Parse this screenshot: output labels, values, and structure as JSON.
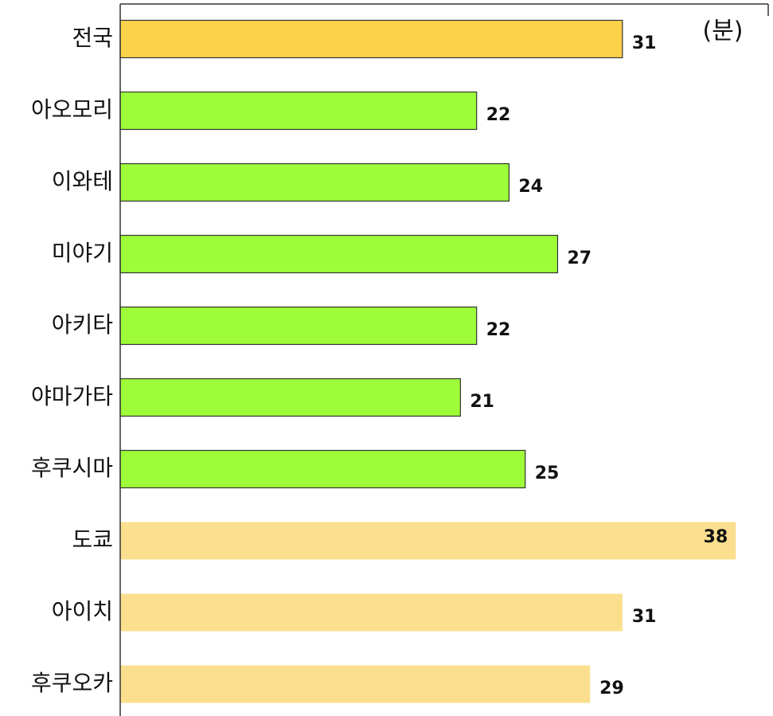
{
  "chart_data": {
    "type": "barh",
    "unit_label": "(분)",
    "categories": [
      "전국",
      "아오모리",
      "이와테",
      "미야기",
      "아키타",
      "야마가타",
      "후쿠시마",
      "도쿄",
      "아이치",
      "후쿠오카"
    ],
    "values": [
      31,
      22,
      24,
      27,
      22,
      21,
      25,
      38,
      31,
      29
    ],
    "colors": [
      "#fcd24a",
      "#9efd38",
      "#9efd38",
      "#9efd38",
      "#9efd38",
      "#9efd38",
      "#9efd38",
      "#fbdf8e",
      "#fbdf8e",
      "#fbdf8e"
    ],
    "edgecolors": [
      "#333333",
      "#333333",
      "#333333",
      "#333333",
      "#333333",
      "#333333",
      "#333333",
      null,
      null,
      null
    ],
    "xlim": [
      0,
      40
    ]
  }
}
